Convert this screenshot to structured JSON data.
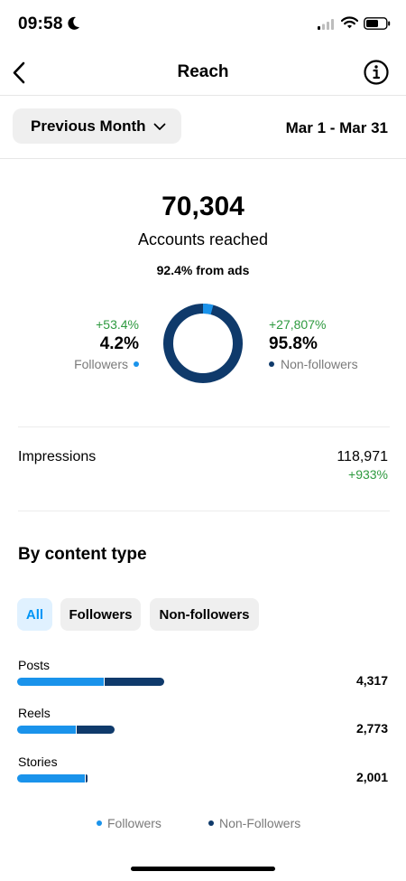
{
  "status": {
    "time": "09:58"
  },
  "nav": {
    "title": "Reach"
  },
  "period": {
    "label": "Previous Month",
    "range": "Mar 1 - Mar 31"
  },
  "reach": {
    "total": "70,304",
    "label": "Accounts reached",
    "from_ads": "92.4% from ads",
    "followers": {
      "delta": "+53.4%",
      "pct": "4.2%",
      "label": "Followers",
      "share": 0.042
    },
    "non_followers": {
      "delta": "+27,807%",
      "pct": "95.8%",
      "label": "Non-followers",
      "share": 0.958
    }
  },
  "impressions": {
    "label": "Impressions",
    "value": "118,971",
    "delta": "+933%"
  },
  "content_type": {
    "title": "By content type",
    "filters": [
      "All",
      "Followers",
      "Non-followers"
    ],
    "active_filter": "All",
    "rows": [
      {
        "label": "Posts",
        "value": "4,317",
        "followers_share": 0.59
      },
      {
        "label": "Reels",
        "value": "2,773",
        "followers_share": 0.6
      },
      {
        "label": "Stories",
        "value": "2,001",
        "followers_share": 0.96
      }
    ],
    "legend": {
      "followers": "Followers",
      "non_followers": "Non-Followers"
    }
  },
  "colors": {
    "followers": "#1a93eb",
    "non_followers": "#0f3a6b",
    "positive": "#2e9a3f",
    "active_chip_bg": "#e0f1ff",
    "active_chip_text": "#0095f6"
  }
}
